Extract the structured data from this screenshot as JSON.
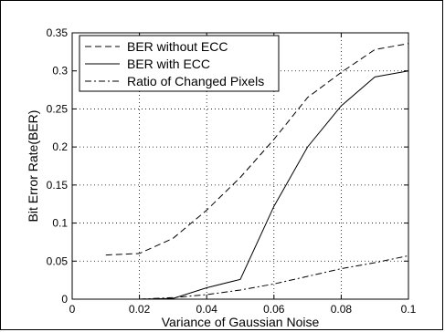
{
  "chart_data": {
    "type": "line",
    "title": "",
    "xlabel": "Variance of Gaussian Noise",
    "ylabel": "Bit Error Rate(BER)",
    "xlim": [
      0,
      0.1
    ],
    "ylim": [
      0,
      0.35
    ],
    "x_ticks": [
      0,
      0.02,
      0.04,
      0.06,
      0.08,
      0.1
    ],
    "x_tick_labels": [
      "0",
      "0.02",
      "0.04",
      "0.06",
      "0.08",
      "0.1"
    ],
    "y_ticks": [
      0,
      0.05,
      0.1,
      0.15,
      0.2,
      0.25,
      0.3,
      0.35
    ],
    "y_tick_labels": [
      "0",
      "0.05",
      "0.1",
      "0.15",
      "0.2",
      "0.25",
      "0.3",
      "0.35"
    ],
    "grid": true,
    "legend_position": "top-left",
    "series": [
      {
        "name": "BER without ECC",
        "dash": "dashed",
        "color": "#000000",
        "x": [
          0.01,
          0.02,
          0.03,
          0.04,
          0.05,
          0.06,
          0.07,
          0.08,
          0.09,
          0.1
        ],
        "y": [
          0.058,
          0.06,
          0.08,
          0.117,
          0.16,
          0.21,
          0.265,
          0.298,
          0.328,
          0.336
        ]
      },
      {
        "name": "BER with ECC",
        "dash": "solid",
        "color": "#000000",
        "x": [
          0.02,
          0.03,
          0.04,
          0.05,
          0.06,
          0.07,
          0.08,
          0.09,
          0.1
        ],
        "y": [
          0.0,
          0.001,
          0.015,
          0.026,
          0.122,
          0.2,
          0.254,
          0.292,
          0.3
        ]
      },
      {
        "name": "Ratio of Changed Pixels",
        "dash": "dashdot",
        "color": "#000000",
        "x": [
          0.02,
          0.03,
          0.04,
          0.05,
          0.06,
          0.07,
          0.08,
          0.09,
          0.1
        ],
        "y": [
          0.0,
          0.002,
          0.006,
          0.012,
          0.02,
          0.03,
          0.04,
          0.048,
          0.057
        ]
      }
    ]
  }
}
